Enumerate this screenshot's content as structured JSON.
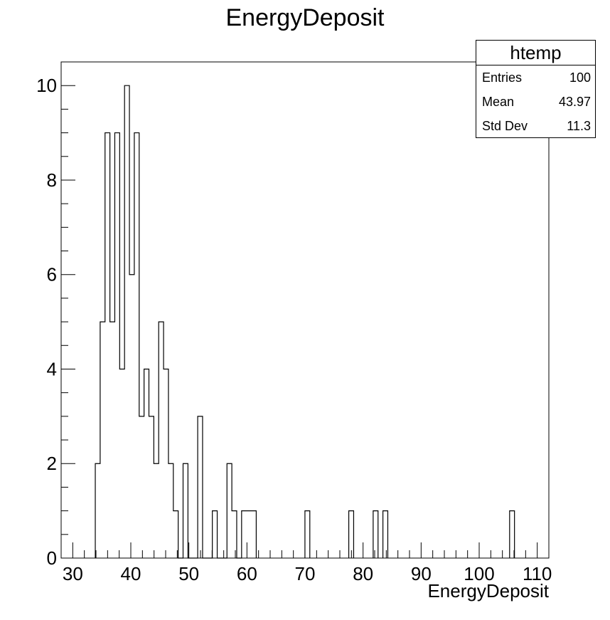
{
  "chart_data": {
    "type": "bar",
    "title": "EnergyDeposit",
    "xlabel": "EnergyDeposit",
    "ylabel": "",
    "xlim": [
      28,
      112
    ],
    "ylim": [
      0,
      10.5
    ],
    "bin_width": 0.84,
    "bin_start": 28,
    "x_ticks": [
      "30",
      "40",
      "50",
      "60",
      "70",
      "80",
      "90",
      "100",
      "110"
    ],
    "y_ticks": [
      "0",
      "2",
      "4",
      "6",
      "8",
      "10"
    ],
    "grid": false,
    "bins": [
      {
        "low": 33.88,
        "count": 2
      },
      {
        "low": 34.72,
        "count": 5
      },
      {
        "low": 35.56,
        "count": 9
      },
      {
        "low": 36.4,
        "count": 5
      },
      {
        "low": 37.24,
        "count": 9
      },
      {
        "low": 38.08,
        "count": 4
      },
      {
        "low": 38.92,
        "count": 10
      },
      {
        "low": 39.76,
        "count": 6
      },
      {
        "low": 40.6,
        "count": 9
      },
      {
        "low": 41.44,
        "count": 3
      },
      {
        "low": 42.28,
        "count": 4
      },
      {
        "low": 43.12,
        "count": 3
      },
      {
        "low": 43.96,
        "count": 2
      },
      {
        "low": 44.8,
        "count": 5
      },
      {
        "low": 45.64,
        "count": 4
      },
      {
        "low": 46.48,
        "count": 2
      },
      {
        "low": 47.32,
        "count": 1
      },
      {
        "low": 48.16,
        "count": 0
      },
      {
        "low": 49.0,
        "count": 2
      },
      {
        "low": 49.84,
        "count": 0
      },
      {
        "low": 50.68,
        "count": 0
      },
      {
        "low": 51.52,
        "count": 3
      },
      {
        "low": 52.36,
        "count": 0
      },
      {
        "low": 53.2,
        "count": 0
      },
      {
        "low": 54.04,
        "count": 1
      },
      {
        "low": 54.88,
        "count": 0
      },
      {
        "low": 55.72,
        "count": 0
      },
      {
        "low": 56.56,
        "count": 2
      },
      {
        "low": 57.4,
        "count": 1
      },
      {
        "low": 58.24,
        "count": 0
      },
      {
        "low": 59.08,
        "count": 1
      },
      {
        "low": 59.92,
        "count": 1
      },
      {
        "low": 60.76,
        "count": 1
      },
      {
        "low": 69.99,
        "count": 1
      },
      {
        "low": 77.54,
        "count": 1
      },
      {
        "low": 81.74,
        "count": 1
      },
      {
        "low": 83.42,
        "count": 1
      },
      {
        "low": 105.24,
        "count": 1
      }
    ]
  },
  "stats_box": {
    "name": "htemp",
    "entries_label": "Entries",
    "entries_value": "100",
    "mean_label": "Mean",
    "mean_value": "43.97",
    "stddev_label": "Std Dev",
    "stddev_value": "11.3"
  }
}
